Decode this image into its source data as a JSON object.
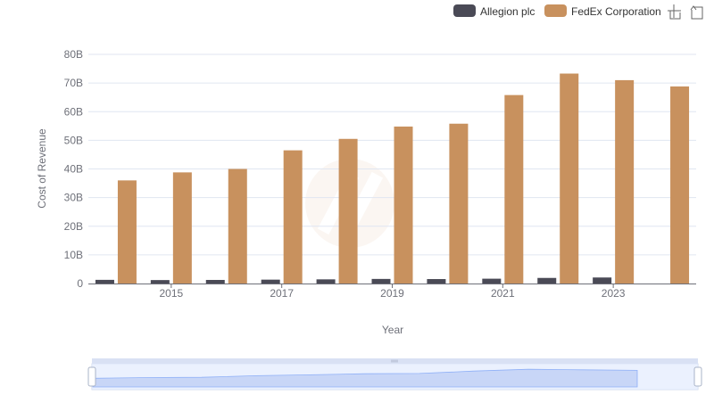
{
  "chart_data": {
    "type": "bar",
    "xlabel": "Year",
    "ylabel": "Cost of Revenue",
    "x_tick_labels": [
      "2015",
      "2017",
      "2019",
      "2021",
      "2023"
    ],
    "y_tick_labels": [
      "0",
      "10B",
      "20B",
      "30B",
      "40B",
      "50B",
      "60B",
      "70B",
      "80B"
    ],
    "ylim": [
      0,
      80000000000
    ],
    "categories": [
      "2014",
      "2015",
      "2016",
      "2017",
      "2018",
      "2019",
      "2020",
      "2021",
      "2022",
      "2023",
      "2024"
    ],
    "series": [
      {
        "name": "Allegion plc",
        "color": "#4a4a56",
        "values": [
          1280000000,
          1200000000,
          1250000000,
          1350000000,
          1450000000,
          1600000000,
          1550000000,
          1680000000,
          1950000000,
          2100000000,
          null
        ]
      },
      {
        "name": "FedEx Corporation",
        "color": "#c8915e",
        "values": [
          36000000000,
          38800000000,
          40000000000,
          46500000000,
          50500000000,
          54800000000,
          55800000000,
          65800000000,
          73300000000,
          71000000000,
          68800000000
        ]
      }
    ],
    "legend_position": "top-right",
    "grid": true,
    "data_zoom_slider": true
  },
  "toolbox": {
    "zoom_icon": "zoom-select-icon",
    "reset_icon": "zoom-reset-icon"
  }
}
